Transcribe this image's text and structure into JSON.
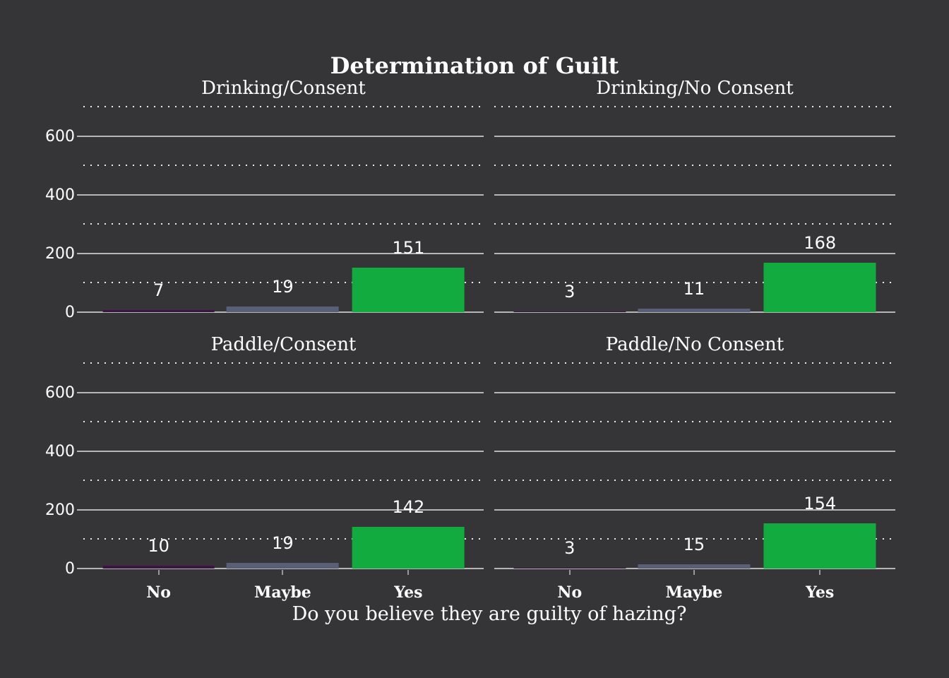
{
  "chart_data": {
    "type": "bar",
    "title": "Determination of Guilt",
    "xlabel": "Do you believe they are guilty of hazing?",
    "ylabel": "",
    "categories": [
      "No",
      "Maybe",
      "Yes"
    ],
    "y_tick_labels": [
      "600",
      "400",
      "200",
      "0"
    ],
    "yticks": [
      0,
      200,
      400,
      600
    ],
    "minor_gridlines": [
      100,
      300,
      500,
      700
    ],
    "ylim": [
      0,
      725
    ],
    "grid": "major solid gray, minor dotted white",
    "legend": "none",
    "facets": [
      {
        "title": "Drinking/Consent",
        "values": [
          7,
          19,
          151
        ]
      },
      {
        "title": "Drinking/No Consent",
        "values": [
          3,
          11,
          168
        ]
      },
      {
        "title": "Paddle/Consent",
        "values": [
          10,
          19,
          142
        ]
      },
      {
        "title": "Paddle/No Consent",
        "values": [
          3,
          15,
          154
        ]
      }
    ],
    "colors": {
      "No": "#3e1446",
      "Maybe": "#5a5f78",
      "Yes": "#12ab40",
      "background": "#353537",
      "major_grid": "#b6b6b6",
      "minor_grid": "#ececec",
      "text": "#ffffff"
    }
  }
}
